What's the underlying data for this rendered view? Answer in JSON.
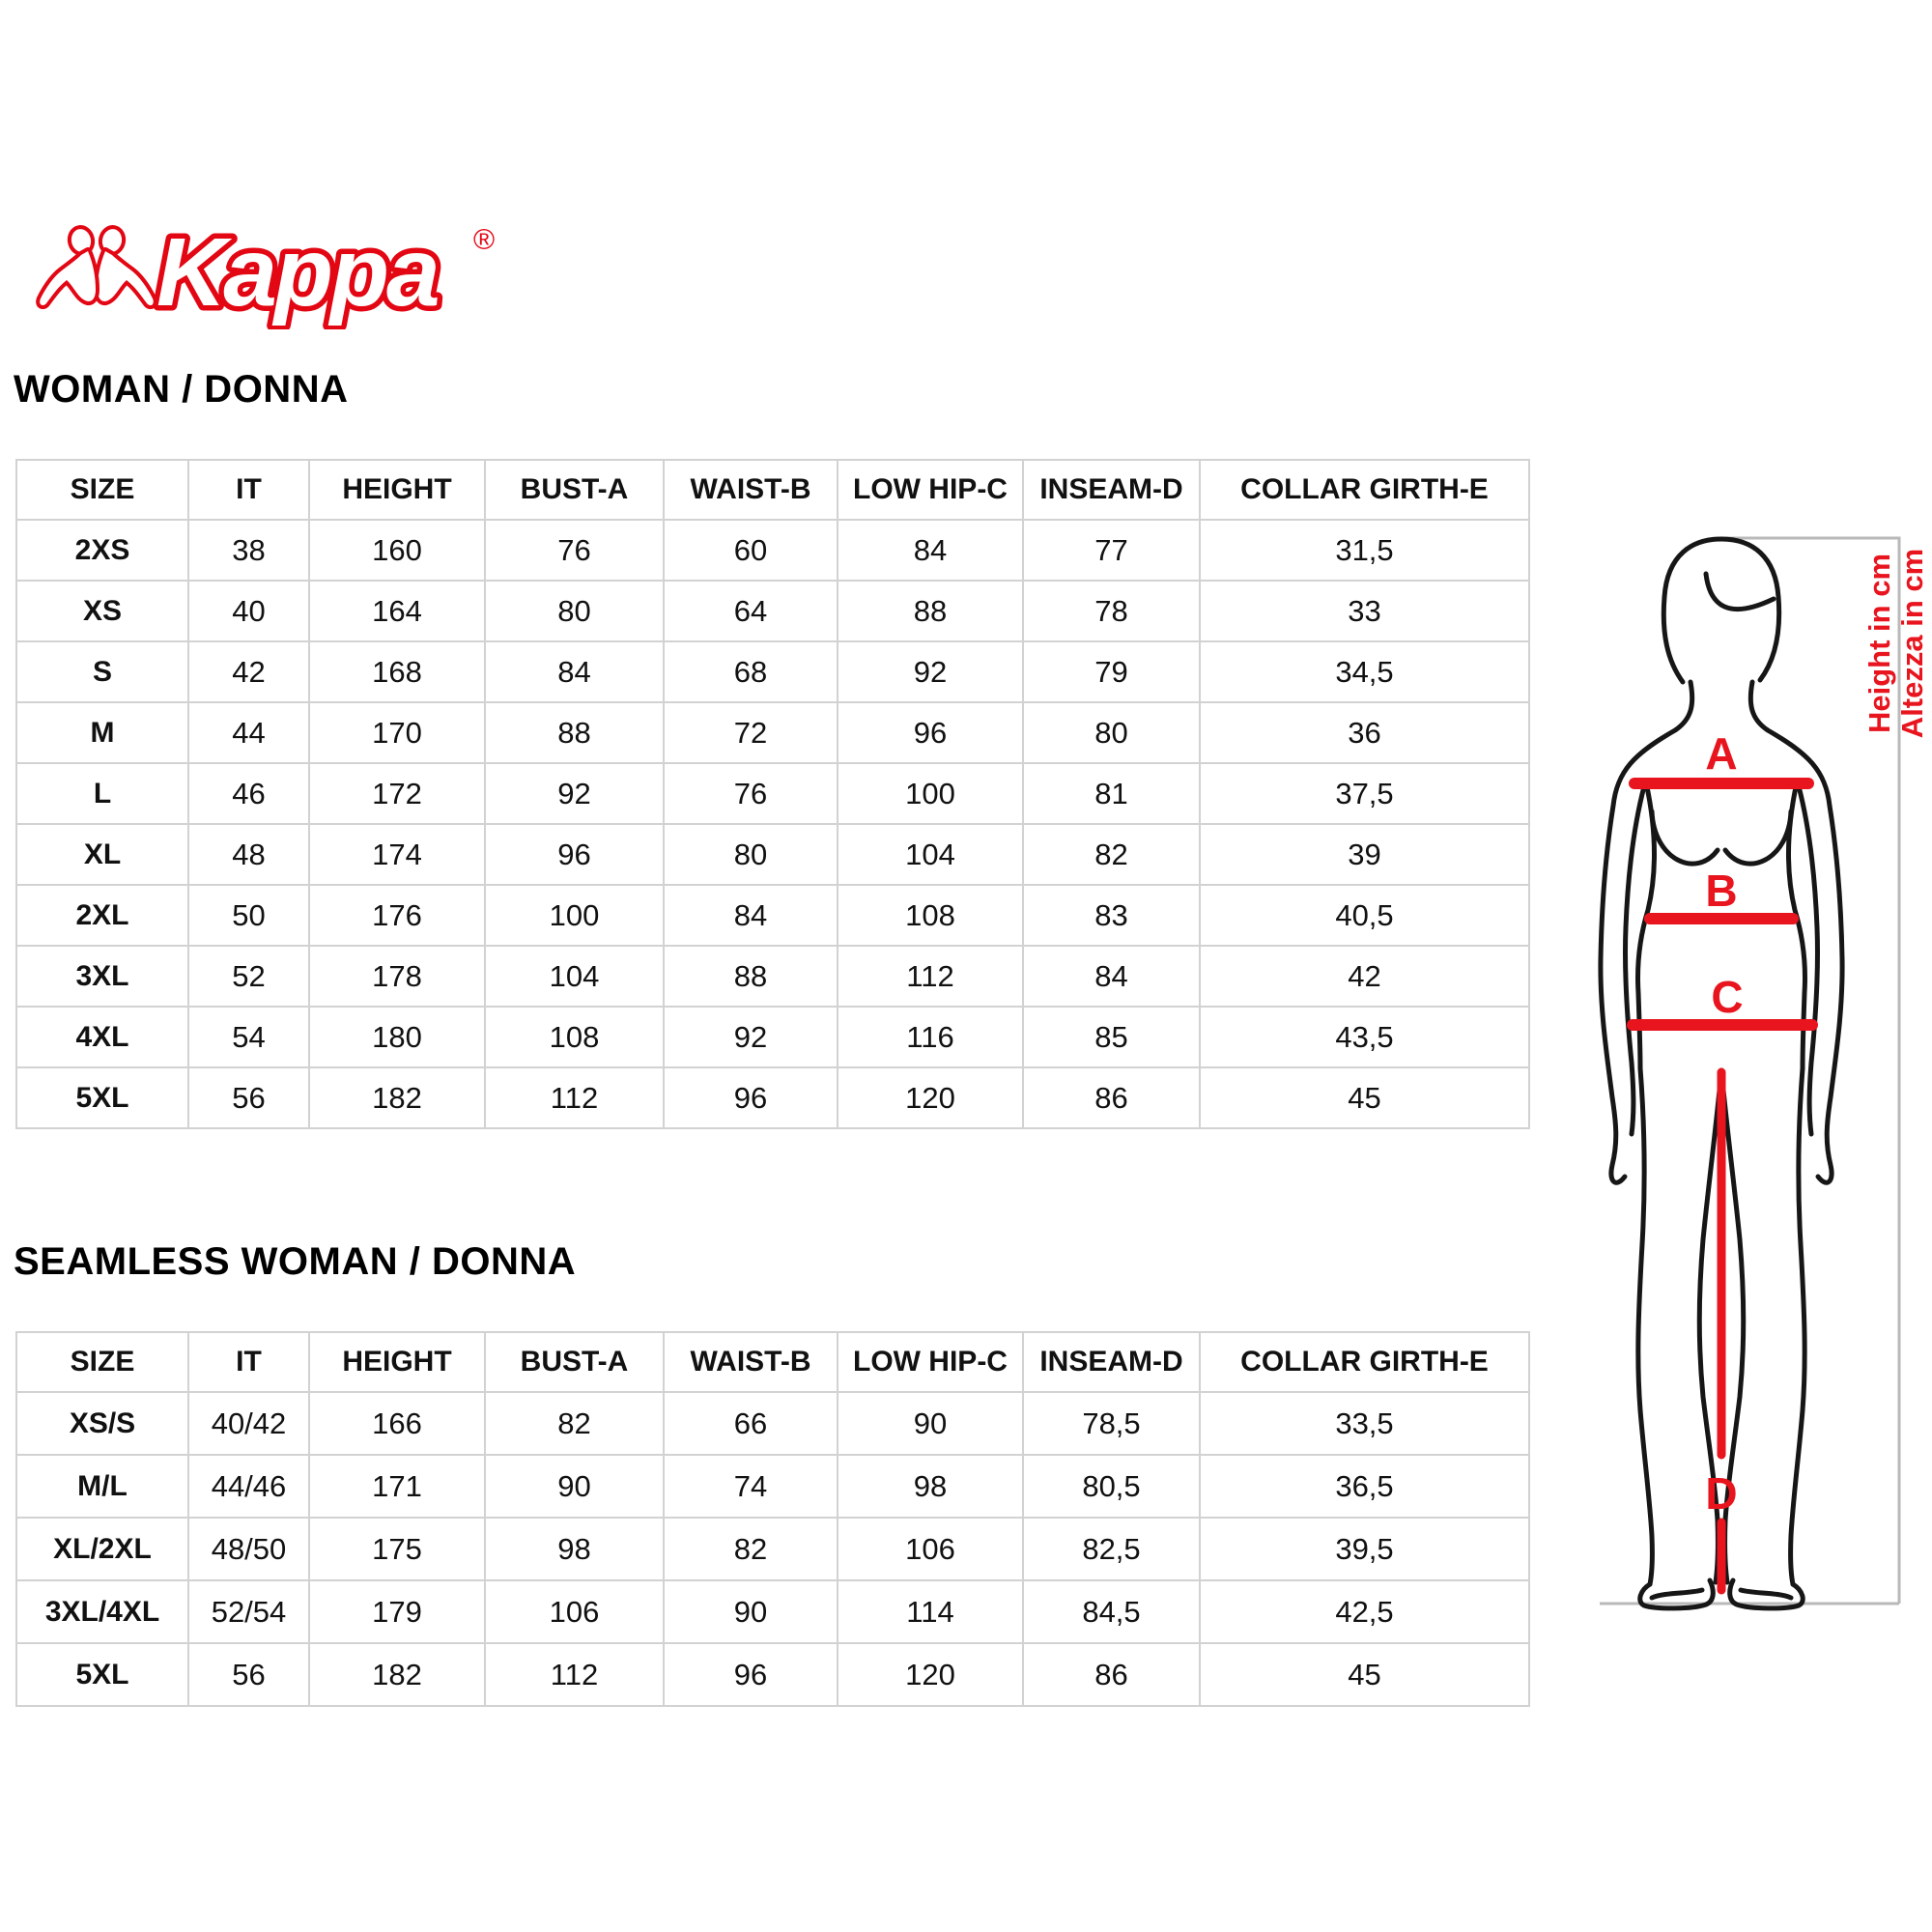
{
  "logo": {
    "brand": "Kappa",
    "registered": "®"
  },
  "colors": {
    "brand_red": "#e30613",
    "measure_red": "#e8141e",
    "table_border": "#d2d2d2",
    "ruler_grey": "#b9b9b9",
    "text_black": "#111111"
  },
  "section_woman": {
    "title": "WOMAN / DONNA",
    "table": {
      "headers": [
        "SIZE",
        "IT",
        "HEIGHT",
        "BUST-A",
        "WAIST-B",
        "LOW HIP-C",
        "INSEAM-D",
        "COLLAR GIRTH-E"
      ],
      "rows": [
        [
          "2XS",
          "38",
          "160",
          "76",
          "60",
          "84",
          "77",
          "31,5"
        ],
        [
          "XS",
          "40",
          "164",
          "80",
          "64",
          "88",
          "78",
          "33"
        ],
        [
          "S",
          "42",
          "168",
          "84",
          "68",
          "92",
          "79",
          "34,5"
        ],
        [
          "M",
          "44",
          "170",
          "88",
          "72",
          "96",
          "80",
          "36"
        ],
        [
          "L",
          "46",
          "172",
          "92",
          "76",
          "100",
          "81",
          "37,5"
        ],
        [
          "XL",
          "48",
          "174",
          "96",
          "80",
          "104",
          "82",
          "39"
        ],
        [
          "2XL",
          "50",
          "176",
          "100",
          "84",
          "108",
          "83",
          "40,5"
        ],
        [
          "3XL",
          "52",
          "178",
          "104",
          "88",
          "112",
          "84",
          "42"
        ],
        [
          "4XL",
          "54",
          "180",
          "108",
          "92",
          "116",
          "85",
          "43,5"
        ],
        [
          "5XL",
          "56",
          "182",
          "112",
          "96",
          "120",
          "86",
          "45"
        ]
      ]
    }
  },
  "section_seamless": {
    "title": "SEAMLESS WOMAN / DONNA",
    "table": {
      "headers": [
        "SIZE",
        "IT",
        "HEIGHT",
        "BUST-A",
        "WAIST-B",
        "LOW HIP-C",
        "INSEAM-D",
        "COLLAR GIRTH-E"
      ],
      "rows": [
        [
          "XS/S",
          "40/42",
          "166",
          "82",
          "66",
          "90",
          "78,5",
          "33,5"
        ],
        [
          "M/L",
          "44/46",
          "171",
          "90",
          "74",
          "98",
          "80,5",
          "36,5"
        ],
        [
          "XL/2XL",
          "48/50",
          "175",
          "98",
          "82",
          "106",
          "82,5",
          "39,5"
        ],
        [
          "3XL/4XL",
          "52/54",
          "179",
          "106",
          "90",
          "114",
          "84,5",
          "42,5"
        ],
        [
          "5XL",
          "56",
          "182",
          "112",
          "96",
          "120",
          "86",
          "45"
        ]
      ]
    }
  },
  "figure": {
    "label_bust": "A",
    "label_waist": "B",
    "label_hip": "C",
    "label_inseam": "D",
    "height_note_en": "Height in cm",
    "height_note_it": "Altezza in cm"
  }
}
